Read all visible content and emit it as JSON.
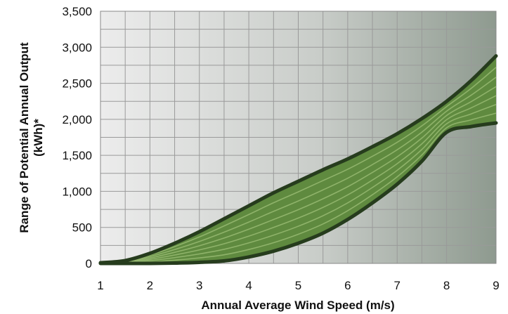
{
  "chart_data": {
    "type": "area",
    "title": "",
    "xlabel": "Annual Average Wind Speed (m/s)",
    "ylabel_line1": "Range of Potential Annual Output",
    "ylabel_line2": "(kWh)*",
    "xlim": [
      1,
      9
    ],
    "ylim": [
      0,
      3500
    ],
    "x_ticks": [
      "1",
      "2",
      "3",
      "4",
      "5",
      "6",
      "7",
      "8",
      "9"
    ],
    "y_ticks": [
      "0",
      "500",
      "1,000",
      "1,500",
      "2,000",
      "2,500",
      "3,000",
      "3,500"
    ],
    "grid": true,
    "legend": "none",
    "colors": {
      "fill": "#5f8a3f",
      "boundary": "#263c1d",
      "inner_lines": "#9fc07a",
      "bg_light": "#ececec",
      "bg_dark": "#8e9a8f",
      "grid": "#9a9a9a"
    },
    "series": [
      {
        "x": [
          1,
          1.5,
          2,
          2.5,
          3,
          3.5,
          4,
          4.5,
          5,
          5.5,
          6,
          6.5,
          7,
          7.5,
          8,
          8.5,
          9
        ],
        "values": [
          10,
          40,
          140,
          280,
          440,
          620,
          800,
          980,
          1140,
          1300,
          1450,
          1620,
          1800,
          2010,
          2250,
          2540,
          2880
        ]
      },
      {
        "x": [
          1,
          1.5,
          2,
          2.5,
          3,
          3.5,
          4,
          4.5,
          5,
          5.5,
          6,
          6.5,
          7,
          7.5,
          8,
          8.5,
          9
        ],
        "values": [
          0,
          0,
          0,
          5,
          15,
          35,
          90,
          170,
          280,
          420,
          610,
          840,
          1100,
          1420,
          1820,
          1900,
          1950
        ]
      }
    ]
  }
}
